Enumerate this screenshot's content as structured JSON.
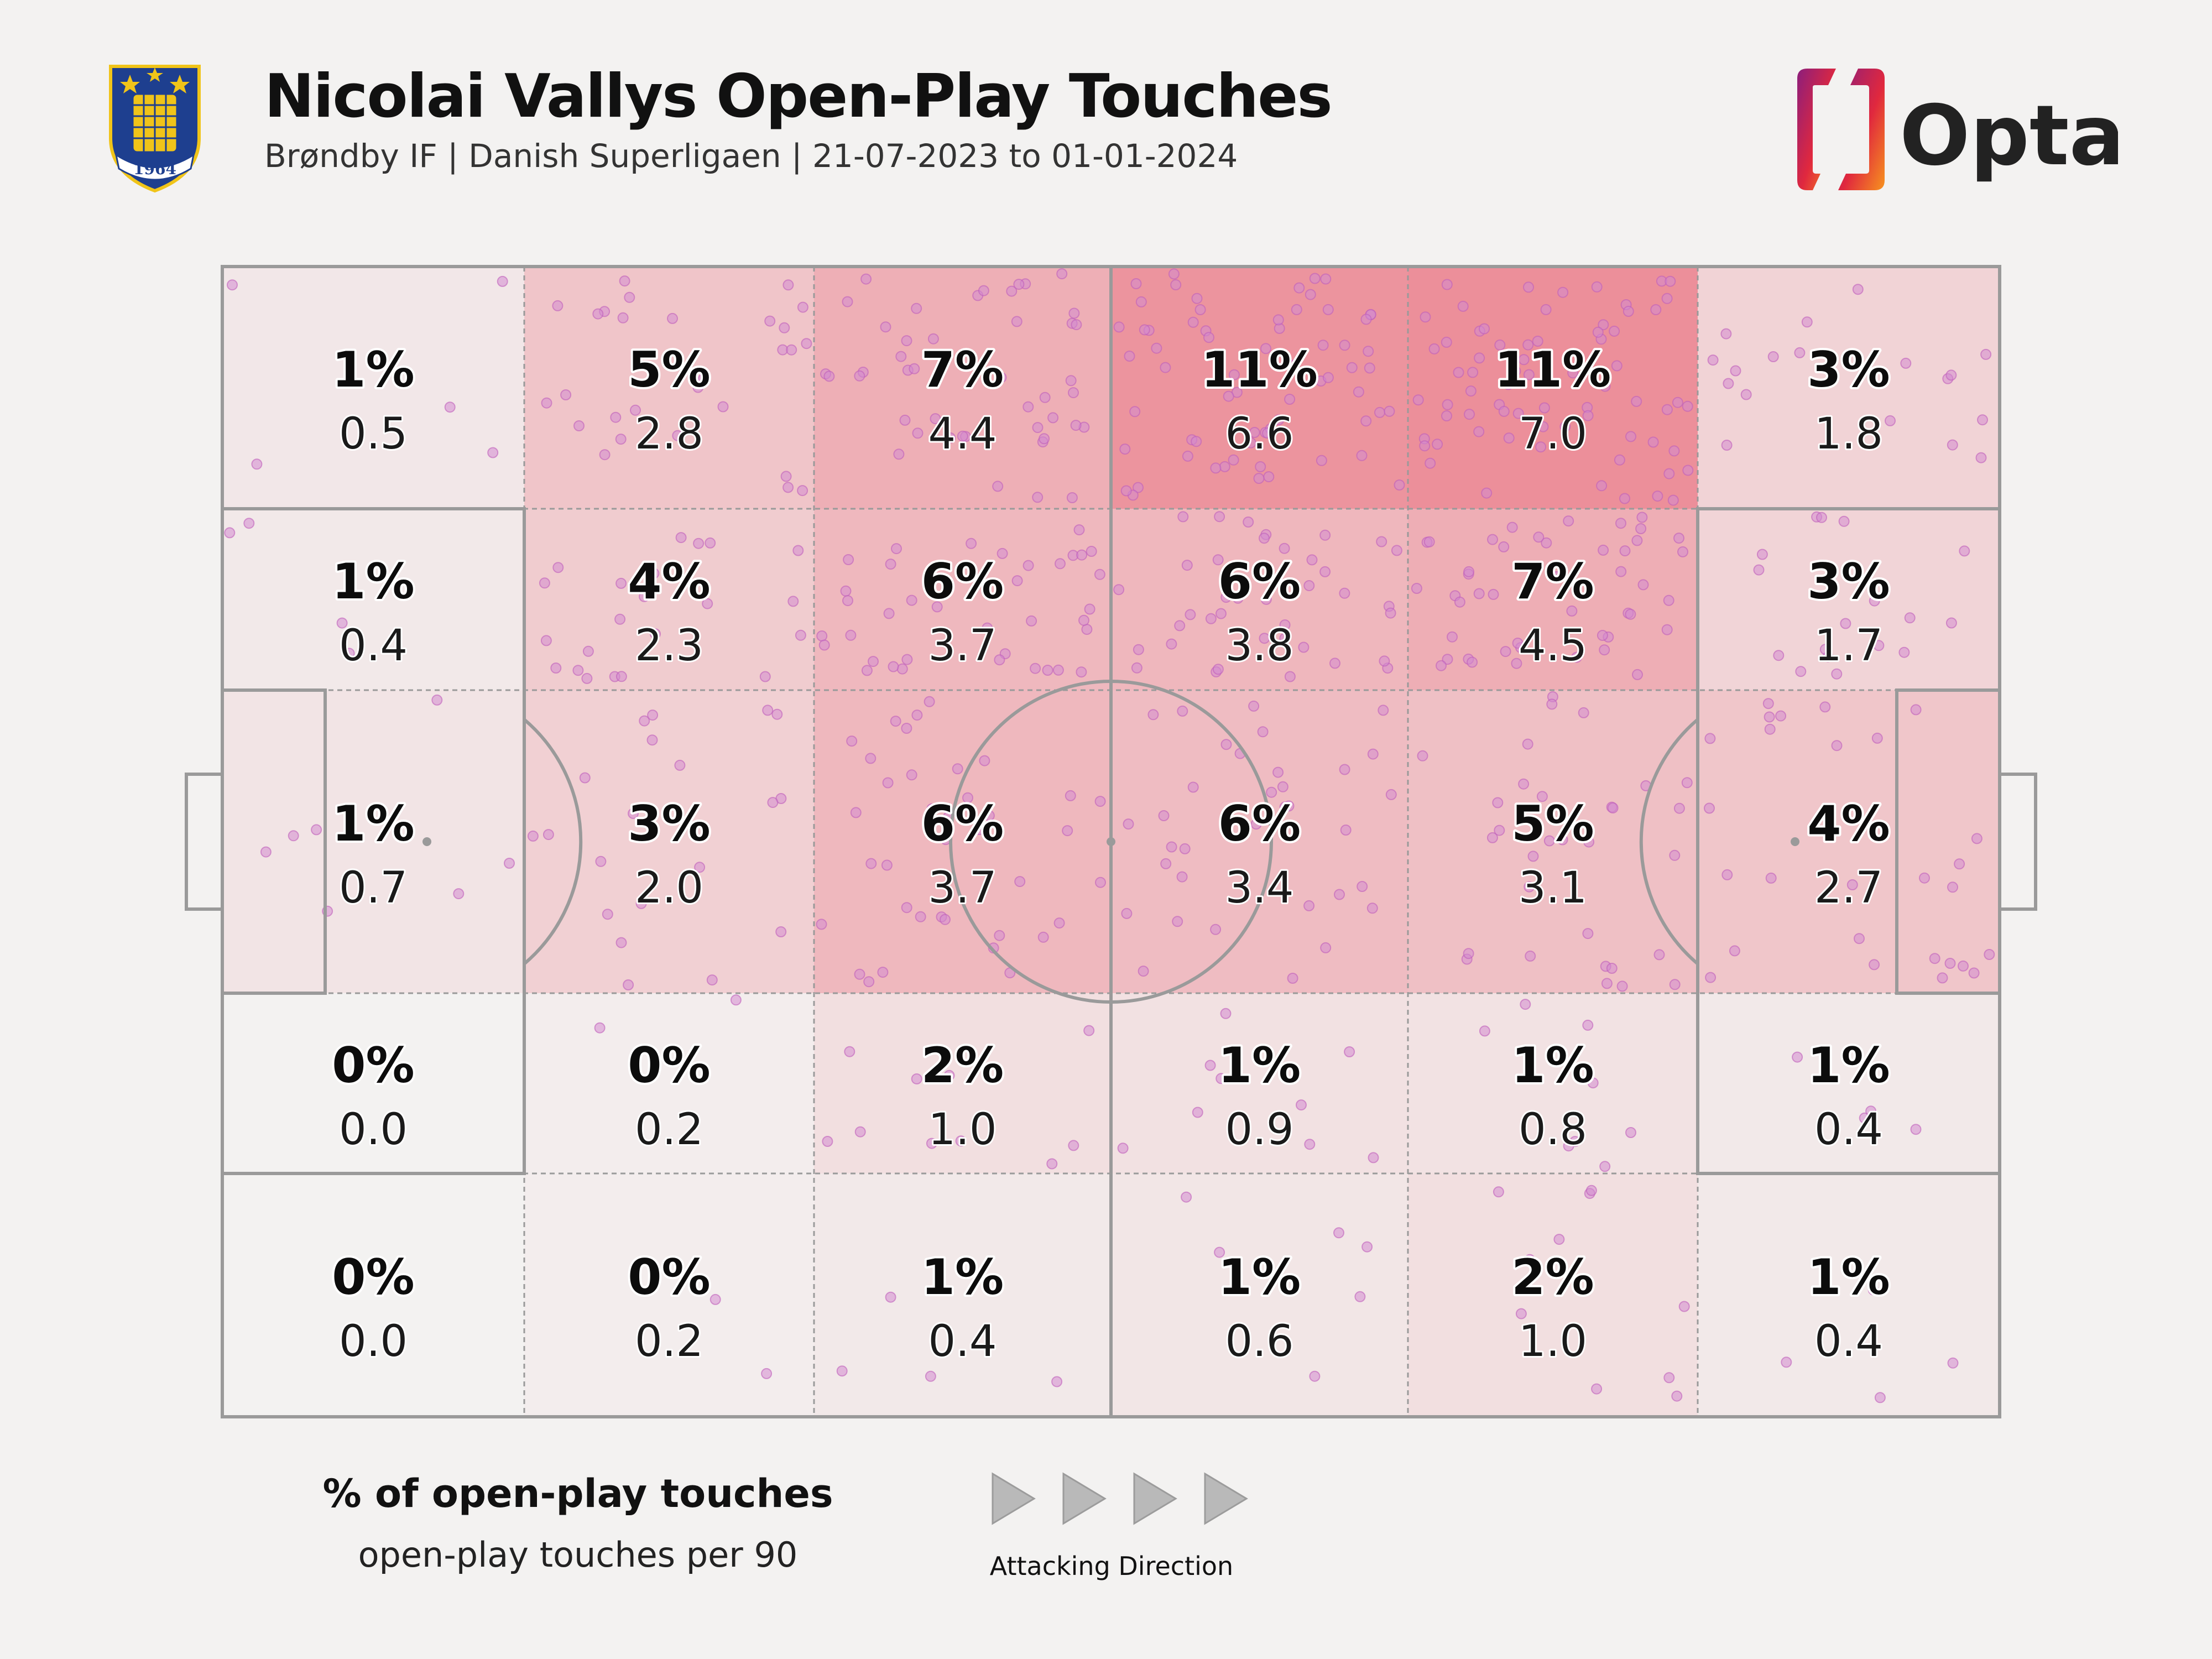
{
  "header": {
    "title": "Nicolai Vallys Open-Play Touches",
    "subtitle": "Brøndby IF | Danish Superligaen | 21-07-2023 to 01-01-2024",
    "crest_year": "1964",
    "brand": "Opta"
  },
  "legend": {
    "title": "% of open-play touches",
    "subtitle": "open-play touches per 90",
    "direction_label": "Attacking Direction"
  },
  "colors": {
    "background": "#f3f2f1",
    "heat_low": "#f3f2f1",
    "heat_high": "#ec8f9a",
    "dots": "#d48ad0",
    "pitch_lines": "#9a9a9a",
    "opta_gradient": [
      "#8c1e7c",
      "#e0283e",
      "#f7931e"
    ]
  },
  "chart_data": {
    "type": "heatmap",
    "title": "Nicolai Vallys Open-Play Touches",
    "rows_top_to_bottom": 5,
    "columns_left_to_right": 6,
    "attacking_direction": "left-to-right",
    "zones": [
      [
        {
          "pct": "1%",
          "per90": "0.5"
        },
        {
          "pct": "5%",
          "per90": "2.8"
        },
        {
          "pct": "7%",
          "per90": "4.4"
        },
        {
          "pct": "11%",
          "per90": "6.6"
        },
        {
          "pct": "11%",
          "per90": "7.0"
        },
        {
          "pct": "3%",
          "per90": "1.8"
        }
      ],
      [
        {
          "pct": "1%",
          "per90": "0.4"
        },
        {
          "pct": "4%",
          "per90": "2.3"
        },
        {
          "pct": "6%",
          "per90": "3.7"
        },
        {
          "pct": "6%",
          "per90": "3.8"
        },
        {
          "pct": "7%",
          "per90": "4.5"
        },
        {
          "pct": "3%",
          "per90": "1.7"
        }
      ],
      [
        {
          "pct": "1%",
          "per90": "0.7"
        },
        {
          "pct": "3%",
          "per90": "2.0"
        },
        {
          "pct": "6%",
          "per90": "3.7"
        },
        {
          "pct": "6%",
          "per90": "3.4"
        },
        {
          "pct": "5%",
          "per90": "3.1"
        },
        {
          "pct": "4%",
          "per90": "2.7"
        }
      ],
      [
        {
          "pct": "0%",
          "per90": "0.0"
        },
        {
          "pct": "0%",
          "per90": "0.2"
        },
        {
          "pct": "2%",
          "per90": "1.0"
        },
        {
          "pct": "1%",
          "per90": "0.9"
        },
        {
          "pct": "1%",
          "per90": "0.8"
        },
        {
          "pct": "1%",
          "per90": "0.4"
        }
      ],
      [
        {
          "pct": "0%",
          "per90": "0.0"
        },
        {
          "pct": "0%",
          "per90": "0.2"
        },
        {
          "pct": "1%",
          "per90": "0.4"
        },
        {
          "pct": "1%",
          "per90": "0.6"
        },
        {
          "pct": "2%",
          "per90": "1.0"
        },
        {
          "pct": "1%",
          "per90": "0.4"
        }
      ]
    ]
  }
}
